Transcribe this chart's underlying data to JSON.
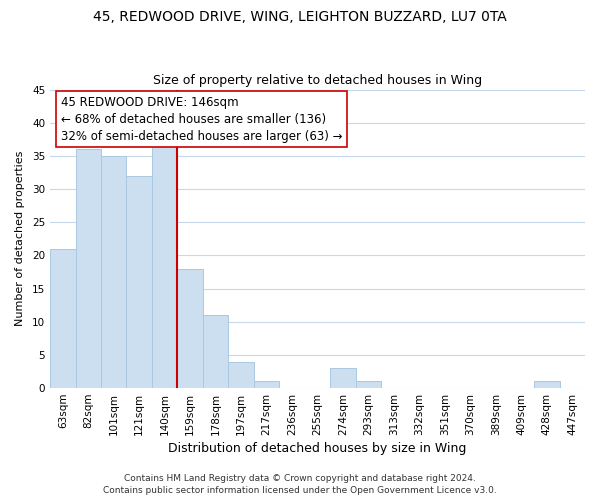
{
  "title_line1": "45, REDWOOD DRIVE, WING, LEIGHTON BUZZARD, LU7 0TA",
  "title_line2": "Size of property relative to detached houses in Wing",
  "xlabel": "Distribution of detached houses by size in Wing",
  "ylabel": "Number of detached properties",
  "categories": [
    "63sqm",
    "82sqm",
    "101sqm",
    "121sqm",
    "140sqm",
    "159sqm",
    "178sqm",
    "197sqm",
    "217sqm",
    "236sqm",
    "255sqm",
    "274sqm",
    "293sqm",
    "313sqm",
    "332sqm",
    "351sqm",
    "370sqm",
    "389sqm",
    "409sqm",
    "428sqm",
    "447sqm"
  ],
  "values": [
    21,
    36,
    35,
    32,
    37,
    18,
    11,
    4,
    1,
    0,
    0,
    3,
    1,
    0,
    0,
    0,
    0,
    0,
    0,
    1,
    0
  ],
  "bar_color": "#ccdff0",
  "bar_edge_color": "#aac8e0",
  "vline_color": "#cc0000",
  "vline_x": 4.5,
  "ylim": [
    0,
    45
  ],
  "yticks": [
    0,
    5,
    10,
    15,
    20,
    25,
    30,
    35,
    40,
    45
  ],
  "annotation_text": "45 REDWOOD DRIVE: 146sqm\n← 68% of detached houses are smaller (136)\n32% of semi-detached houses are larger (63) →",
  "footer_line1": "Contains HM Land Registry data © Crown copyright and database right 2024.",
  "footer_line2": "Contains public sector information licensed under the Open Government Licence v3.0.",
  "bg_color": "#ffffff",
  "grid_color": "#c8d8eb",
  "title1_fontsize": 10,
  "title2_fontsize": 9,
  "xlabel_fontsize": 9,
  "ylabel_fontsize": 8,
  "tick_fontsize": 7.5,
  "annotation_fontsize": 8.5,
  "footer_fontsize": 6.5
}
